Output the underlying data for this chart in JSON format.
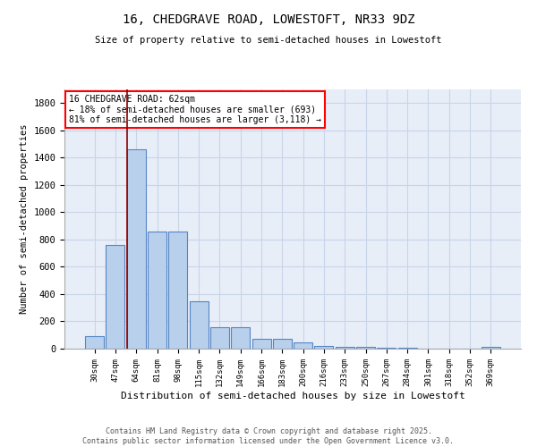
{
  "title_line1": "16, CHEDGRAVE ROAD, LOWESTOFT, NR33 9DZ",
  "title_line2": "Size of property relative to semi-detached houses in Lowestoft",
  "xlabel": "Distribution of semi-detached houses by size in Lowestoft",
  "ylabel": "Number of semi-detached properties",
  "categories": [
    "30sqm",
    "47sqm",
    "64sqm",
    "81sqm",
    "98sqm",
    "115sqm",
    "132sqm",
    "149sqm",
    "166sqm",
    "183sqm",
    "200sqm",
    "216sqm",
    "233sqm",
    "250sqm",
    "267sqm",
    "284sqm",
    "301sqm",
    "318sqm",
    "352sqm",
    "369sqm"
  ],
  "values": [
    90,
    760,
    1460,
    860,
    860,
    350,
    155,
    155,
    75,
    75,
    45,
    20,
    15,
    10,
    5,
    5,
    3,
    3,
    3,
    10
  ],
  "bar_color": "#b8d0eb",
  "bar_edge_color": "#5585c5",
  "highlight_line_color": "#8b0000",
  "annotation_text": "16 CHEDGRAVE ROAD: 62sqm\n← 18% of semi-detached houses are smaller (693)\n81% of semi-detached houses are larger (3,118) →",
  "ylim": [
    0,
    1900
  ],
  "yticks": [
    0,
    200,
    400,
    600,
    800,
    1000,
    1200,
    1400,
    1600,
    1800
  ],
  "background_color": "#e8eef8",
  "grid_color": "#c8d4e8",
  "footer_line1": "Contains HM Land Registry data © Crown copyright and database right 2025.",
  "footer_line2": "Contains public sector information licensed under the Open Government Licence v3.0."
}
